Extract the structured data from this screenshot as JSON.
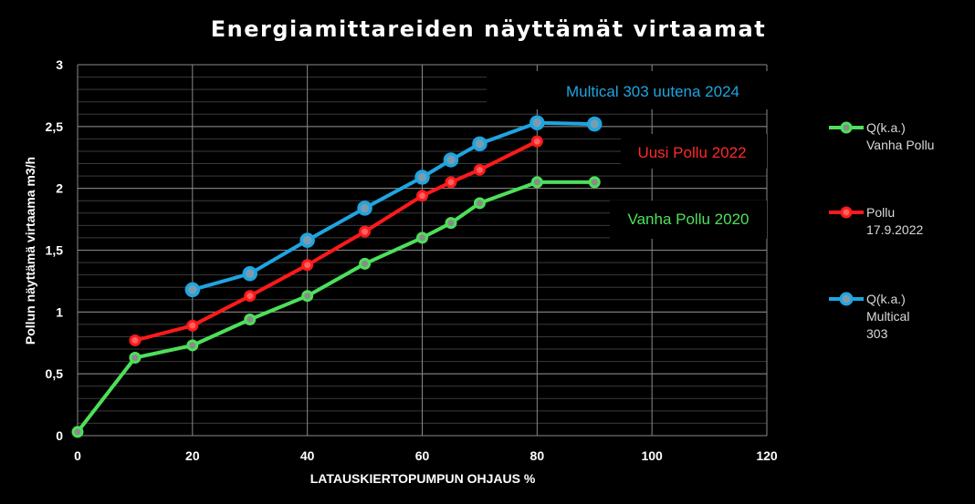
{
  "chart_data": {
    "type": "line",
    "title": "Energiamittareiden näyttämät virtaamat",
    "xlabel": "LATAUSKIERTOPUMPUN OHJAUS %",
    "ylabel": "Pollun näyttämä virtaama m3/h",
    "xlim": [
      0,
      120
    ],
    "ylim": [
      0,
      3
    ],
    "x_ticks": [
      0,
      20,
      40,
      60,
      80,
      100,
      120
    ],
    "x_tick_labels": [
      "0",
      "20",
      "40",
      "60",
      "80",
      "100",
      "120"
    ],
    "y_ticks": [
      0,
      0.5,
      1,
      1.5,
      2,
      2.5,
      3
    ],
    "y_tick_labels": [
      "0",
      "0,5",
      "1",
      "1,5",
      "2",
      "2,5",
      "3"
    ],
    "grid": true,
    "legend_position": "right",
    "series": [
      {
        "name": "Q(k.a.) Vanha Pollu",
        "legend_lines": [
          "Q(k.a.)",
          "Vanha Pollu"
        ],
        "color": "#4de05a",
        "x": [
          0,
          10,
          20,
          30,
          40,
          50,
          60,
          65,
          70,
          80,
          90
        ],
        "y": [
          0.03,
          0.63,
          0.73,
          0.94,
          1.13,
          1.39,
          1.6,
          1.72,
          1.88,
          2.05,
          2.05
        ]
      },
      {
        "name": "Pollu 17.9.2022",
        "legend_lines": [
          "Pollu",
          "17.9.2022"
        ],
        "color": "#ff1a1a",
        "x": [
          10,
          20,
          30,
          40,
          50,
          60,
          65,
          70,
          80
        ],
        "y": [
          0.77,
          0.89,
          1.13,
          1.38,
          1.65,
          1.94,
          2.05,
          2.15,
          2.38
        ]
      },
      {
        "name": "Q(k.a.) Multical 303",
        "legend_lines": [
          "Q(k.a.)",
          "Multical",
          "303"
        ],
        "color": "#1fa5e0",
        "x": [
          20,
          30,
          40,
          50,
          60,
          65,
          70,
          80,
          90
        ],
        "y": [
          1.18,
          1.31,
          1.58,
          1.84,
          2.09,
          2.23,
          2.36,
          2.53,
          2.52
        ]
      }
    ],
    "annotations": [
      {
        "text": "Multical 303 uutena 2024",
        "color": "#1fa5e0"
      },
      {
        "text": "Uusi Pollu 2022",
        "color": "#ff2a2a"
      },
      {
        "text": "Vanha Pollu 2020",
        "color": "#4de05a"
      }
    ]
  }
}
